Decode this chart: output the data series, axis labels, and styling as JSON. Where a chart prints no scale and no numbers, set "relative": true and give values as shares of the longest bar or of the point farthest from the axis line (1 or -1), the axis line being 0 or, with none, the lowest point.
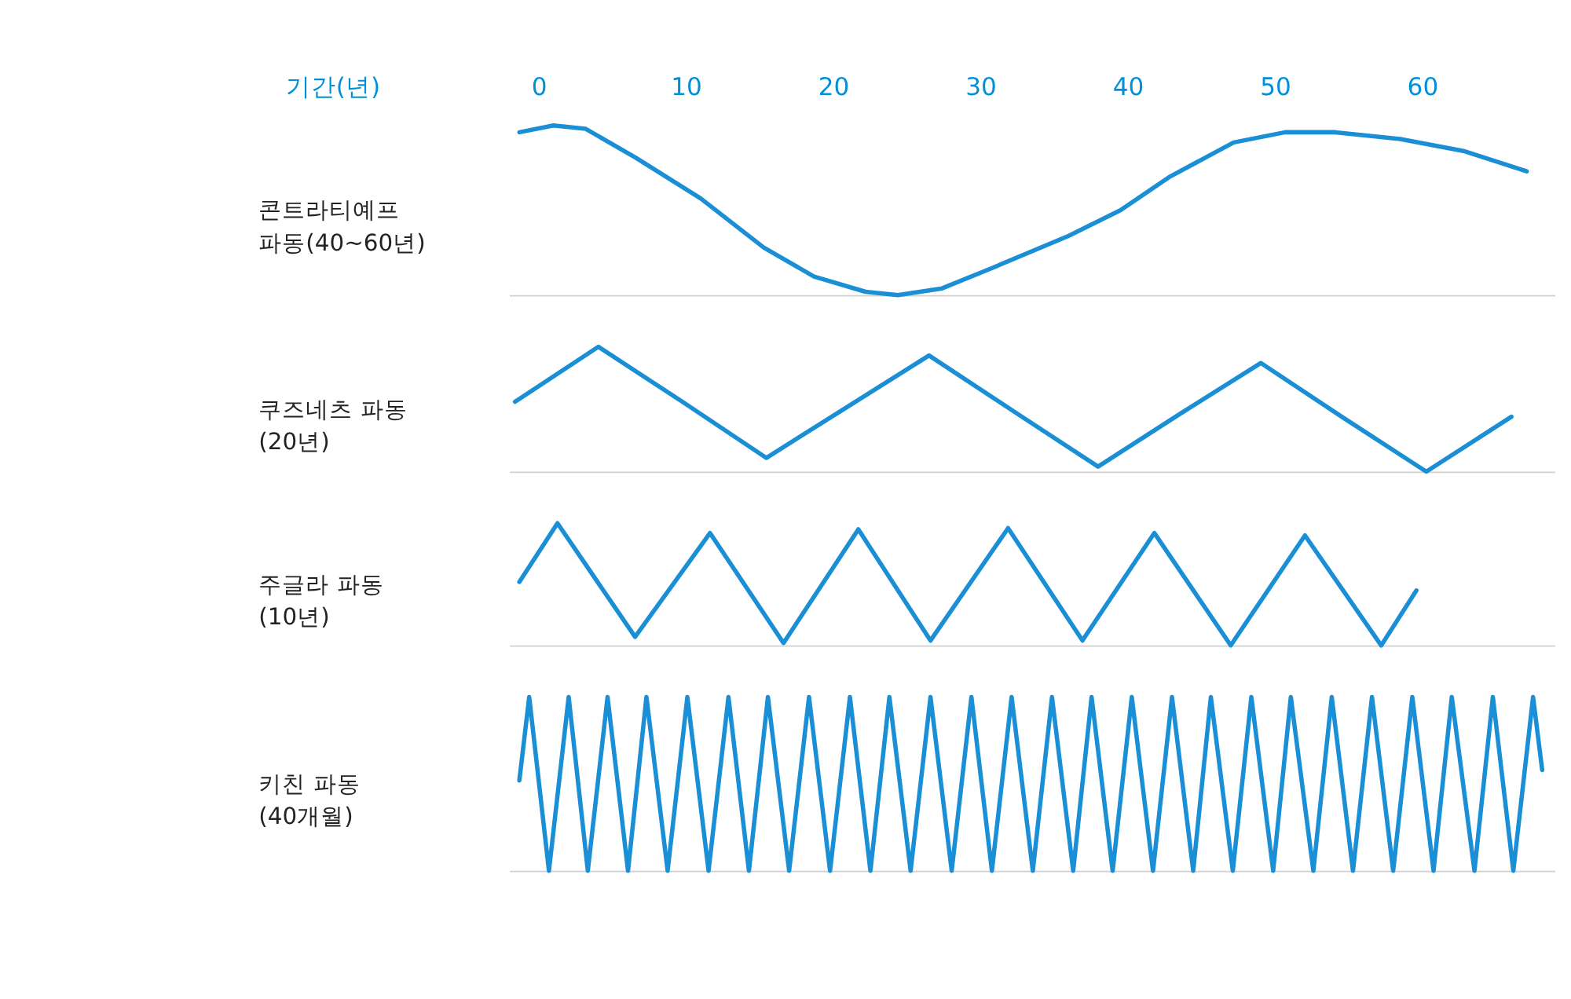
{
  "chart_data": [
    {
      "type": "line",
      "relative": true,
      "xlabel": "기간(년)",
      "xlim": [
        -2,
        69
      ],
      "xticks": [
        0,
        10,
        20,
        30,
        40,
        50,
        60
      ],
      "ylabel": "콘트라티예프 파동(40~60년)",
      "x": [
        -1.3,
        1.0,
        3.2,
        6.6,
        11.0,
        15.3,
        18.7,
        22.2,
        24.4,
        27.4,
        30.8,
        36.0,
        39.5,
        42.9,
        47.2,
        50.7,
        54.1,
        58.5,
        62.8,
        67.1
      ],
      "series": [
        {
          "color": "#1a8fd6",
          "values": [
            0.96,
            1,
            0.98,
            0.81,
            0.57,
            0.28,
            0.11,
            0.02,
            0,
            0.04,
            0.16,
            0.35,
            0.5,
            0.7,
            0.9,
            0.96,
            0.96,
            0.92,
            0.85,
            0.73
          ]
        }
      ]
    },
    {
      "type": "line",
      "relative": true,
      "xlim": [
        -2,
        69
      ],
      "tick_labels": false,
      "ylabel": "쿠즈네츠 파동 (20년)",
      "x": [
        -1.6,
        4.06,
        9.76,
        15.46,
        20.98,
        26.51,
        32.3,
        37.99,
        43.52,
        49.05,
        54.66,
        60.28,
        66.06
      ],
      "series": [
        {
          "color": "#1a8fd6",
          "values": [
            0.56,
            1,
            0.56,
            0.11,
            0.52,
            0.93,
            0.48,
            0.04,
            0.46,
            0.87,
            0.43,
            0,
            0.44
          ]
        }
      ]
    },
    {
      "type": "line",
      "relative": true,
      "xlim": [
        -2,
        69
      ],
      "tick_labels": false,
      "ylabel": "주글라 파동 (10년)",
      "x": [
        -1.31,
        1.28,
        6.55,
        11.64,
        16.63,
        21.71,
        26.61,
        31.88,
        36.93,
        41.81,
        47.0,
        52.04,
        57.22,
        59.61
      ],
      "series": [
        {
          "color": "#1a8fd6",
          "values": [
            0.52,
            1,
            0.07,
            0.92,
            0.02,
            0.95,
            0.04,
            0.96,
            0.04,
            0.92,
            0,
            0.9,
            0,
            0.45
          ]
        }
      ]
    },
    {
      "type": "line",
      "relative": true,
      "xlim": [
        -2,
        69
      ],
      "tick_labels": false,
      "ylabel": "키친 파동 (40개월)",
      "x": [
        -1.31,
        -0.64,
        0.7,
        2.04,
        3.34,
        4.68,
        6.07,
        7.32,
        8.76,
        10.1,
        11.54,
        12.89,
        14.28,
        15.57,
        17.01,
        18.36,
        19.79,
        21.14,
        22.53,
        23.82,
        25.26,
        26.61,
        28.05,
        29.39,
        30.78,
        32.12,
        33.56,
        34.86,
        36.3,
        37.55,
        38.98,
        40.28,
        41.72,
        43.01,
        44.45,
        45.65,
        47.14,
        48.4,
        49.88,
        51.08,
        52.61,
        53.86,
        55.3,
        56.59,
        58.03,
        59.33,
        60.77,
        62.01,
        63.55,
        64.8,
        66.19,
        67.53,
        68.15
      ],
      "series": [
        {
          "color": "#1a8fd6",
          "values": [
            0.52,
            1,
            0,
            1,
            0,
            1,
            0,
            1,
            0,
            1,
            0,
            1,
            0,
            1,
            0,
            1,
            0,
            1,
            0,
            1,
            0,
            1,
            0,
            1,
            0,
            1,
            0,
            1,
            0,
            1,
            0,
            1,
            0,
            1,
            0,
            1,
            0,
            1,
            0,
            1,
            0,
            1,
            0,
            1,
            0,
            1,
            0,
            1,
            0,
            1,
            0,
            1,
            0.58
          ]
        }
      ]
    }
  ]
}
